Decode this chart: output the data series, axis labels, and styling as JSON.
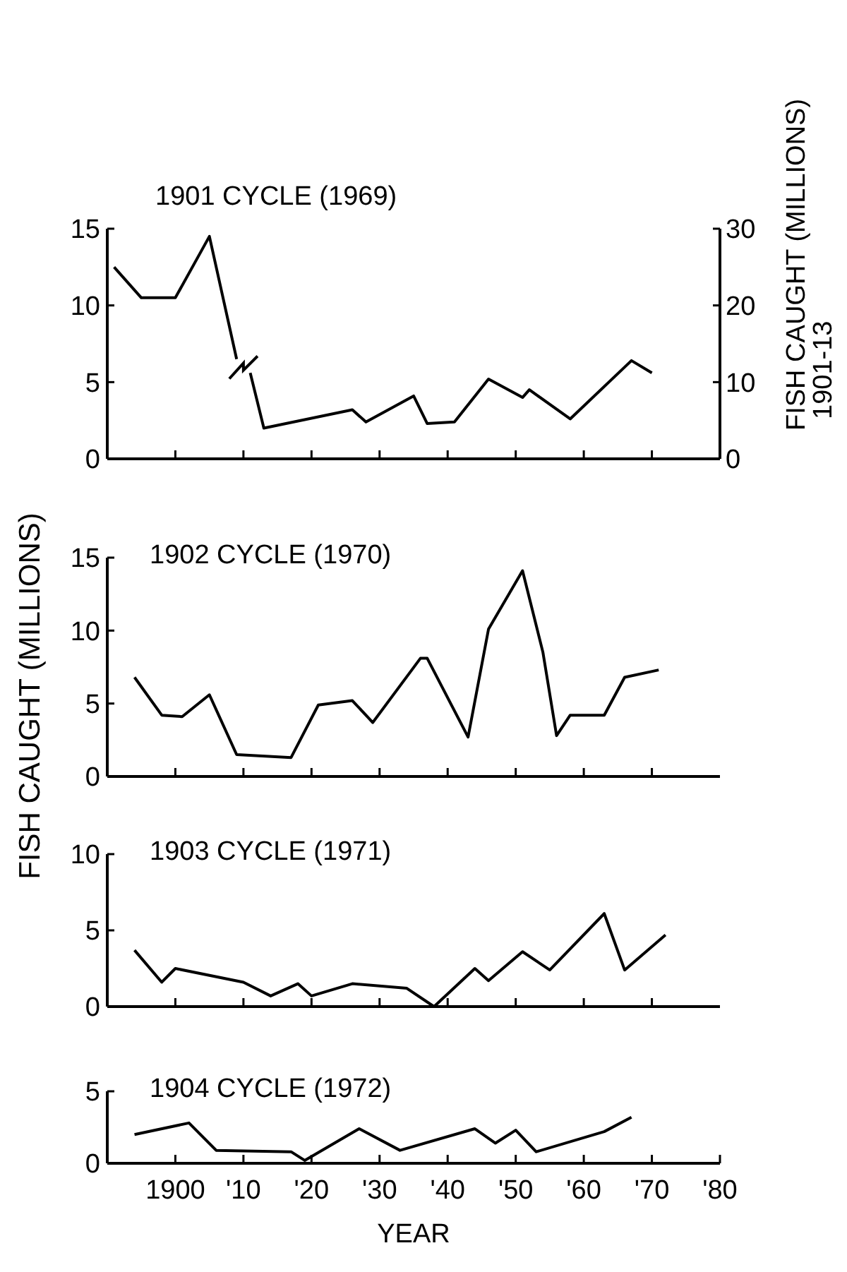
{
  "chart_data": [
    {
      "type": "line",
      "title": "1901 CYCLE (1969)",
      "y2label": "FISH CAUGHT (MILLIONS)\n1901-13",
      "xlim": [
        1890,
        1980
      ],
      "xticks": [
        {
          "value": 1900,
          "label": null
        },
        {
          "value": 1910,
          "label": null
        },
        {
          "value": 1920,
          "label": null
        },
        {
          "value": 1930,
          "label": null
        },
        {
          "value": 1940,
          "label": null
        },
        {
          "value": 1950,
          "label": null
        },
        {
          "value": 1960,
          "label": null
        },
        {
          "value": 1970,
          "label": null
        }
      ],
      "ylim": [
        0,
        15
      ],
      "yticks": [
        0,
        5,
        10,
        15
      ],
      "y2lim": [
        0,
        30
      ],
      "y2ticks": [
        0,
        10,
        20,
        30
      ],
      "tick_labels": "y",
      "series": [
        {
          "color": "#000000",
          "axis": "y2",
          "x": [
            1891,
            1895,
            1900,
            1905,
            1909
          ],
          "values": [
            25,
            21,
            21,
            29,
            13
          ]
        },
        {
          "color": "#000000",
          "x": [
            1911,
            1913,
            1926,
            1928,
            1935,
            1937,
            1941,
            1946,
            1951,
            1952,
            1958,
            1967,
            1970
          ],
          "values": [
            5.6,
            2.0,
            3.2,
            2.4,
            4.1,
            2.3,
            2.4,
            5.2,
            4.0,
            4.5,
            2.6,
            6.4,
            5.6
          ]
        }
      ]
    },
    {
      "type": "line",
      "title": "1902 CYCLE (1970)",
      "ylabel": "FISH CAUGHT (MILLIONS)",
      "xlim": [
        1890,
        1980
      ],
      "xticks": [
        {
          "value": 1900,
          "label": null
        },
        {
          "value": 1910,
          "label": null
        },
        {
          "value": 1920,
          "label": null
        },
        {
          "value": 1930,
          "label": null
        },
        {
          "value": 1940,
          "label": null
        },
        {
          "value": 1950,
          "label": null
        },
        {
          "value": 1960,
          "label": null
        },
        {
          "value": 1970,
          "label": null
        }
      ],
      "ylim": [
        0,
        15
      ],
      "yticks": [
        0,
        5,
        10,
        15
      ],
      "tick_labels": "y",
      "series": [
        {
          "color": "#000000",
          "x": [
            1894,
            1898,
            1901,
            1905,
            1909,
            1917,
            1921,
            1926,
            1929,
            1936,
            1937,
            1943,
            1946,
            1951,
            1954,
            1956,
            1958,
            1963,
            1966,
            1971
          ],
          "values": [
            6.8,
            4.2,
            4.1,
            5.6,
            1.5,
            1.3,
            4.9,
            5.2,
            3.7,
            8.1,
            8.1,
            2.7,
            10.1,
            14.1,
            8.5,
            2.8,
            4.2,
            4.2,
            6.8,
            7.3
          ]
        }
      ]
    },
    {
      "type": "line",
      "title": "1903 CYCLE  (1971)",
      "xlim": [
        1890,
        1980
      ],
      "xticks": [
        {
          "value": 1900,
          "label": null
        },
        {
          "value": 1910,
          "label": null
        },
        {
          "value": 1920,
          "label": null
        },
        {
          "value": 1930,
          "label": null
        },
        {
          "value": 1940,
          "label": null
        },
        {
          "value": 1950,
          "label": null
        },
        {
          "value": 1960,
          "label": null
        },
        {
          "value": 1970,
          "label": null
        }
      ],
      "ylim": [
        0,
        10
      ],
      "yticks": [
        0,
        5,
        10
      ],
      "tick_labels": "y",
      "series": [
        {
          "color": "#000000",
          "x": [
            1894,
            1898,
            1900,
            1910,
            1914,
            1918,
            1920,
            1926,
            1934,
            1938,
            1944,
            1946,
            1951,
            1955,
            1963,
            1966,
            1972
          ],
          "values": [
            3.7,
            1.6,
            2.5,
            1.6,
            0.7,
            1.5,
            0.7,
            1.5,
            1.2,
            0,
            2.5,
            1.7,
            3.6,
            2.4,
            6.1,
            2.4,
            4.7
          ]
        }
      ]
    },
    {
      "type": "line",
      "title": "1904 CYCLE  (1972)",
      "xlabel": "YEAR",
      "xlim": [
        1890,
        1980
      ],
      "xticks": [
        {
          "value": 1900,
          "label": "1900"
        },
        {
          "value": 1910,
          "label": "'10"
        },
        {
          "value": 1920,
          "label": "'20"
        },
        {
          "value": 1930,
          "label": "'30"
        },
        {
          "value": 1940,
          "label": "'40"
        },
        {
          "value": 1950,
          "label": "'50"
        },
        {
          "value": 1960,
          "label": "'60"
        },
        {
          "value": 1970,
          "label": "'70"
        },
        {
          "value": 1980,
          "label": "'80"
        }
      ],
      "ylim": [
        0,
        5
      ],
      "yticks": [
        0,
        5
      ],
      "series": [
        {
          "color": "#000000",
          "x": [
            1894,
            1902,
            1906,
            1917,
            1919,
            1927,
            1933,
            1944,
            1947,
            1950,
            1953,
            1963,
            1967
          ],
          "values": [
            2.0,
            2.8,
            0.9,
            0.8,
            0.2,
            2.4,
            0.9,
            2.4,
            1.4,
            2.3,
            0.8,
            2.2,
            3.2
          ]
        }
      ]
    }
  ]
}
